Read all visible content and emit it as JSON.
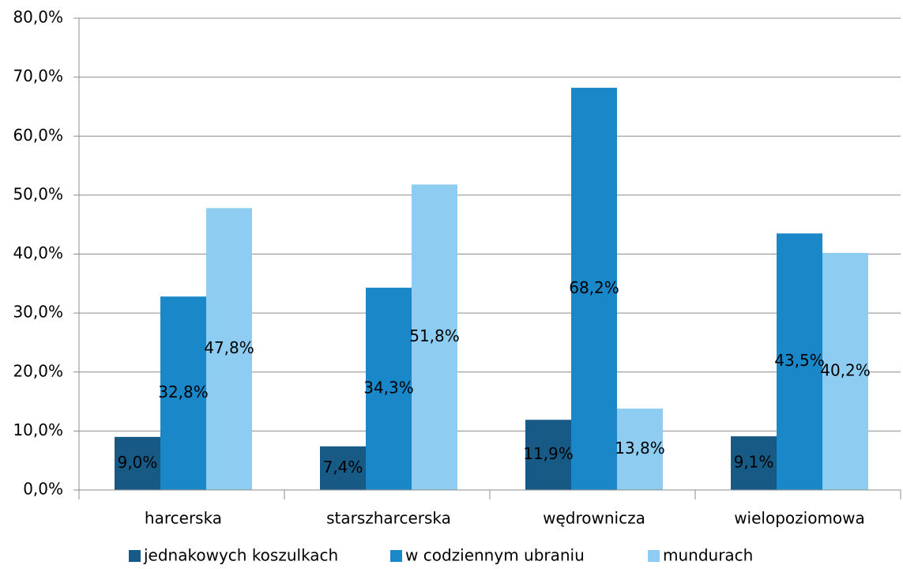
{
  "chart_data": {
    "type": "bar",
    "categories": [
      "harcerska",
      "starszharcerska",
      "wędrownicza",
      "wielopoziomowa"
    ],
    "series": [
      {
        "name": "jednakowych koszulkach",
        "color": "#175a86",
        "values": [
          9.0,
          7.4,
          11.9,
          9.1
        ],
        "value_labels": [
          "9,0%",
          "7,4%",
          "11,9%",
          "9,1%"
        ]
      },
      {
        "name": "w codziennym ubraniu",
        "color": "#1a87c9",
        "values": [
          32.8,
          34.3,
          68.2,
          43.5
        ],
        "value_labels": [
          "32,8%",
          "34,3%",
          "68,2%",
          "43,5%"
        ]
      },
      {
        "name": "mundurach",
        "color": "#8ecdf1",
        "values": [
          47.8,
          51.8,
          13.8,
          40.2
        ],
        "value_labels": [
          "47,8%",
          "51,8%",
          "13,8%",
          "40,2%"
        ]
      }
    ],
    "ylim": [
      0,
      80
    ],
    "yticks": [
      {
        "value": 0,
        "label": "0,0%"
      },
      {
        "value": 10,
        "label": "10,0%"
      },
      {
        "value": 20,
        "label": "20,0%"
      },
      {
        "value": 30,
        "label": "30,0%"
      },
      {
        "value": 40,
        "label": "40,0%"
      },
      {
        "value": 50,
        "label": "50,0%"
      },
      {
        "value": 60,
        "label": "60,0%"
      },
      {
        "value": 70,
        "label": "70,0%"
      },
      {
        "value": 80,
        "label": "80,0%"
      }
    ],
    "grid": true,
    "legend": "bottom"
  }
}
